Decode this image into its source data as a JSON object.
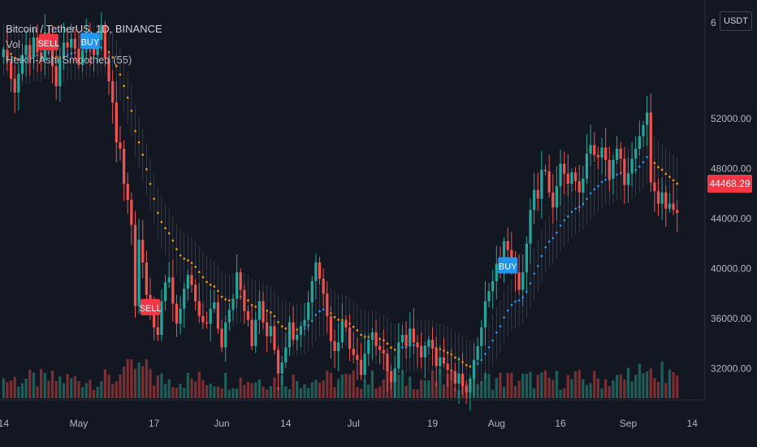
{
  "header": {
    "symbol_line": "Bitcoin / TetherUS, 1D, BINANCE",
    "vol_label": "Vol",
    "indicator_label": "Heikin-Ashi Smoothed (55)"
  },
  "unit_label": "USDT",
  "last_price": "44468.29",
  "colors": {
    "background": "#131722",
    "up": "#26a69a",
    "down": "#ef5350",
    "up_volume": "#1e5e57",
    "down_volume": "#7a2f32",
    "ha_bear": "#ff9800",
    "ha_bull": "#2196f3",
    "buy": "#2196f3",
    "sell": "#f23645"
  },
  "chart_data": {
    "type": "candlestick",
    "title": "Bitcoin / TetherUS, 1D, BINANCE",
    "y_ticks": [
      "52000.00",
      "48000.00",
      "44000.00",
      "40000.00",
      "36000.00",
      "32000.00"
    ],
    "y_tick_values": [
      52000,
      48000,
      44000,
      40000,
      36000,
      32000
    ],
    "top_tick_partial": "6",
    "x_ticks": [
      "14",
      "May",
      "17",
      "Jun",
      "14",
      "Jul",
      "19",
      "Aug",
      "16",
      "Sep",
      "14"
    ],
    "ylim": [
      29500,
      61500
    ],
    "close_series": [
      57500,
      56600,
      55200,
      54100,
      55600,
      57100,
      57900,
      56900,
      58500,
      57300,
      56700,
      58900,
      57800,
      56200,
      54600,
      56800,
      58100,
      57700,
      58400,
      57600,
      56300,
      57500,
      58800,
      57900,
      57100,
      58300,
      59500,
      56800,
      55000,
      53300,
      50100,
      49600,
      46800,
      45500,
      43500,
      37000,
      42300,
      40500,
      37900,
      36600,
      35300,
      34700,
      37400,
      38900,
      39300,
      37200,
      35600,
      36800,
      38400,
      39500,
      38700,
      37400,
      36200,
      35700,
      35600,
      36800,
      37300,
      35200,
      33700,
      35700,
      36700,
      37600,
      39700,
      38300,
      36600,
      35900,
      33800,
      35900,
      37400,
      35700,
      34600,
      35400,
      33500,
      31600,
      32500,
      33700,
      35700,
      34300,
      34700,
      35400,
      35900,
      37300,
      39000,
      40500,
      39200,
      38000,
      36200,
      34200,
      33400,
      34100,
      35800,
      35300,
      33600,
      33100,
      32700,
      31500,
      33200,
      34300,
      34900,
      33800,
      33500,
      33200,
      31800,
      30900,
      32000,
      34100,
      34700,
      33800,
      35200,
      34100,
      33700,
      32900,
      33800,
      34300,
      33600,
      32200,
      32900,
      32400,
      31900,
      31800,
      30800,
      31600,
      30600,
      30100,
      31200,
      32700,
      33800,
      35300,
      37400,
      38200,
      39000,
      40400,
      39800,
      42200,
      41500,
      40900,
      39700,
      38300,
      39700,
      42000,
      44700,
      46300,
      45600,
      47900,
      47800,
      46100,
      44900,
      46600,
      48400,
      47600,
      46800,
      47700,
      47000,
      46100,
      47200,
      49200,
      49900,
      49100,
      48900,
      49700,
      48700,
      47200,
      48700,
      49600,
      48800,
      46700,
      47600,
      48800,
      49600,
      50600,
      51500,
      52500,
      46900,
      46200,
      45200,
      46100,
      44800,
      45200,
      44700,
      44468
    ]
  }
}
